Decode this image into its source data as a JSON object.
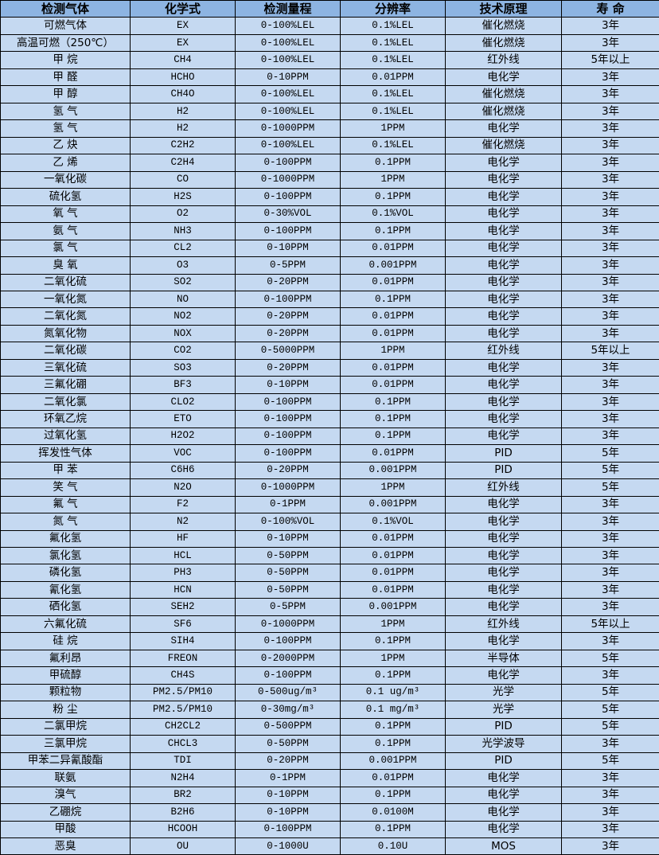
{
  "colors": {
    "header_bg": "#8DB4E2",
    "row_bg": "#C5D9F1",
    "border": "#000000"
  },
  "headers": [
    "检测气体",
    "化学式",
    "检测量程",
    "分辨率",
    "技术原理",
    "寿 命"
  ],
  "rows": [
    [
      "可燃气体",
      "EX",
      "0-100%LEL",
      "0.1%LEL",
      "催化燃烧",
      "3年"
    ],
    [
      "高温可燃（250℃）",
      "EX",
      "0-100%LEL",
      "0.1%LEL",
      "催化燃烧",
      "3年"
    ],
    [
      "甲 烷",
      "CH4",
      "0-100%LEL",
      "0.1%LEL",
      "红外线",
      "5年以上"
    ],
    [
      "甲 醛",
      "HCHO",
      "0-10PPM",
      "0.01PPM",
      "电化学",
      "3年"
    ],
    [
      "甲 醇",
      "CH4O",
      "0-100%LEL",
      "0.1%LEL",
      "催化燃烧",
      "3年"
    ],
    [
      "氢 气",
      "H2",
      "0-100%LEL",
      "0.1%LEL",
      "催化燃烧",
      "3年"
    ],
    [
      "氢 气",
      "H2",
      "0-1000PPM",
      "1PPM",
      "电化学",
      "3年"
    ],
    [
      "乙 炔",
      "C2H2",
      "0-100%LEL",
      "0.1%LEL",
      "催化燃烧",
      "3年"
    ],
    [
      "乙 烯",
      "C2H4",
      "0-100PPM",
      "0.1PPM",
      "电化学",
      "3年"
    ],
    [
      "一氧化碳",
      "CO",
      "0-1000PPM",
      "1PPM",
      "电化学",
      "3年"
    ],
    [
      "硫化氢",
      "H2S",
      "0-100PPM",
      "0.1PPM",
      "电化学",
      "3年"
    ],
    [
      "氧 气",
      "O2",
      "0-30%VOL",
      "0.1%VOL",
      "电化学",
      "3年"
    ],
    [
      "氨 气",
      "NH3",
      "0-100PPM",
      "0.1PPM",
      "电化学",
      "3年"
    ],
    [
      "氯 气",
      "CL2",
      "0-10PPM",
      "0.01PPM",
      "电化学",
      "3年"
    ],
    [
      "臭 氧",
      "O3",
      "0-5PPM",
      "0.001PPM",
      "电化学",
      "3年"
    ],
    [
      "二氧化硫",
      "SO2",
      "0-20PPM",
      "0.01PPM",
      "电化学",
      "3年"
    ],
    [
      "一氧化氮",
      "NO",
      "0-100PPM",
      "0.1PPM",
      "电化学",
      "3年"
    ],
    [
      "二氧化氮",
      "NO2",
      "0-20PPM",
      "0.01PPM",
      "电化学",
      "3年"
    ],
    [
      "氮氧化物",
      "NOX",
      "0-20PPM",
      "0.01PPM",
      "电化学",
      "3年"
    ],
    [
      "二氧化碳",
      "CO2",
      "0-5000PPM",
      "1PPM",
      "红外线",
      "5年以上"
    ],
    [
      "三氧化硫",
      "SO3",
      "0-20PPM",
      "0.01PPM",
      "电化学",
      "3年"
    ],
    [
      "三氟化硼",
      "BF3",
      "0-10PPM",
      "0.01PPM",
      "电化学",
      "3年"
    ],
    [
      "二氧化氯",
      "CLO2",
      "0-100PPM",
      "0.1PPM",
      "电化学",
      "3年"
    ],
    [
      "环氧乙烷",
      "ETO",
      "0-100PPM",
      "0.1PPM",
      "电化学",
      "3年"
    ],
    [
      "过氧化氢",
      "H2O2",
      "0-100PPM",
      "0.1PPM",
      "电化学",
      "3年"
    ],
    [
      "挥发性气体",
      "VOC",
      "0-100PPM",
      "0.01PPM",
      "PID",
      "5年"
    ],
    [
      "甲 苯",
      "C6H6",
      "0-20PPM",
      "0.001PPM",
      "PID",
      "5年"
    ],
    [
      "笑 气",
      "N2O",
      "0-1000PPM",
      "1PPM",
      "红外线",
      "5年"
    ],
    [
      "氟 气",
      "F2",
      "0-1PPM",
      "0.001PPM",
      "电化学",
      "3年"
    ],
    [
      "氮 气",
      "N2",
      "0-100%VOL",
      "0.1%VOL",
      "电化学",
      "3年"
    ],
    [
      "氟化氢",
      "HF",
      "0-10PPM",
      "0.01PPM",
      "电化学",
      "3年"
    ],
    [
      "氯化氢",
      "HCL",
      "0-50PPM",
      "0.01PPM",
      "电化学",
      "3年"
    ],
    [
      "磷化氢",
      "PH3",
      "0-50PPM",
      "0.01PPM",
      "电化学",
      "3年"
    ],
    [
      "氰化氢",
      "HCN",
      "0-50PPM",
      "0.01PPM",
      "电化学",
      "3年"
    ],
    [
      "硒化氢",
      "SEH2",
      "0-5PPM",
      "0.001PPM",
      "电化学",
      "3年"
    ],
    [
      "六氟化硫",
      "SF6",
      "0-1000PPM",
      "1PPM",
      "红外线",
      "5年以上"
    ],
    [
      "硅 烷",
      "SIH4",
      "0-100PPM",
      "0.1PPM",
      "电化学",
      "3年"
    ],
    [
      "氟利昂",
      "FREON",
      "0-2000PPM",
      "1PPM",
      "半导体",
      "5年"
    ],
    [
      "甲硫醇",
      "CH4S",
      "0-100PPM",
      "0.1PPM",
      "电化学",
      "3年"
    ],
    [
      "颗粒物",
      "PM2.5/PM10",
      "0-500ug/m³",
      "0.1 ug/m³",
      "光学",
      "5年"
    ],
    [
      "粉 尘",
      "PM2.5/PM10",
      "0-30mg/m³",
      "0.1 mg/m³",
      "光学",
      "5年"
    ],
    [
      "二氯甲烷",
      "CH2CL2",
      "0-500PPM",
      "0.1PPM",
      "PID",
      "5年"
    ],
    [
      "三氯甲烷",
      "CHCL3",
      "0-50PPM",
      "0.1PPM",
      "光学波导",
      "3年"
    ],
    [
      "甲苯二异氰酸酯",
      "TDI",
      "0-20PPM",
      "0.001PPM",
      "PID",
      "5年"
    ],
    [
      "联氨",
      "N2H4",
      "0-1PPM",
      "0.01PPM",
      "电化学",
      "3年"
    ],
    [
      "溴气",
      "BR2",
      "0-10PPM",
      "0.1PPM",
      "电化学",
      "3年"
    ],
    [
      "乙硼烷",
      "B2H6",
      "0-10PPM",
      "0.0100M",
      "电化学",
      "3年"
    ],
    [
      "甲酸",
      "HCOOH",
      "0-100PPM",
      "0.1PPM",
      "电化学",
      "3年"
    ],
    [
      "恶臭",
      "OU",
      "0-1000U",
      "0.10U",
      "MOS",
      "3年"
    ]
  ]
}
